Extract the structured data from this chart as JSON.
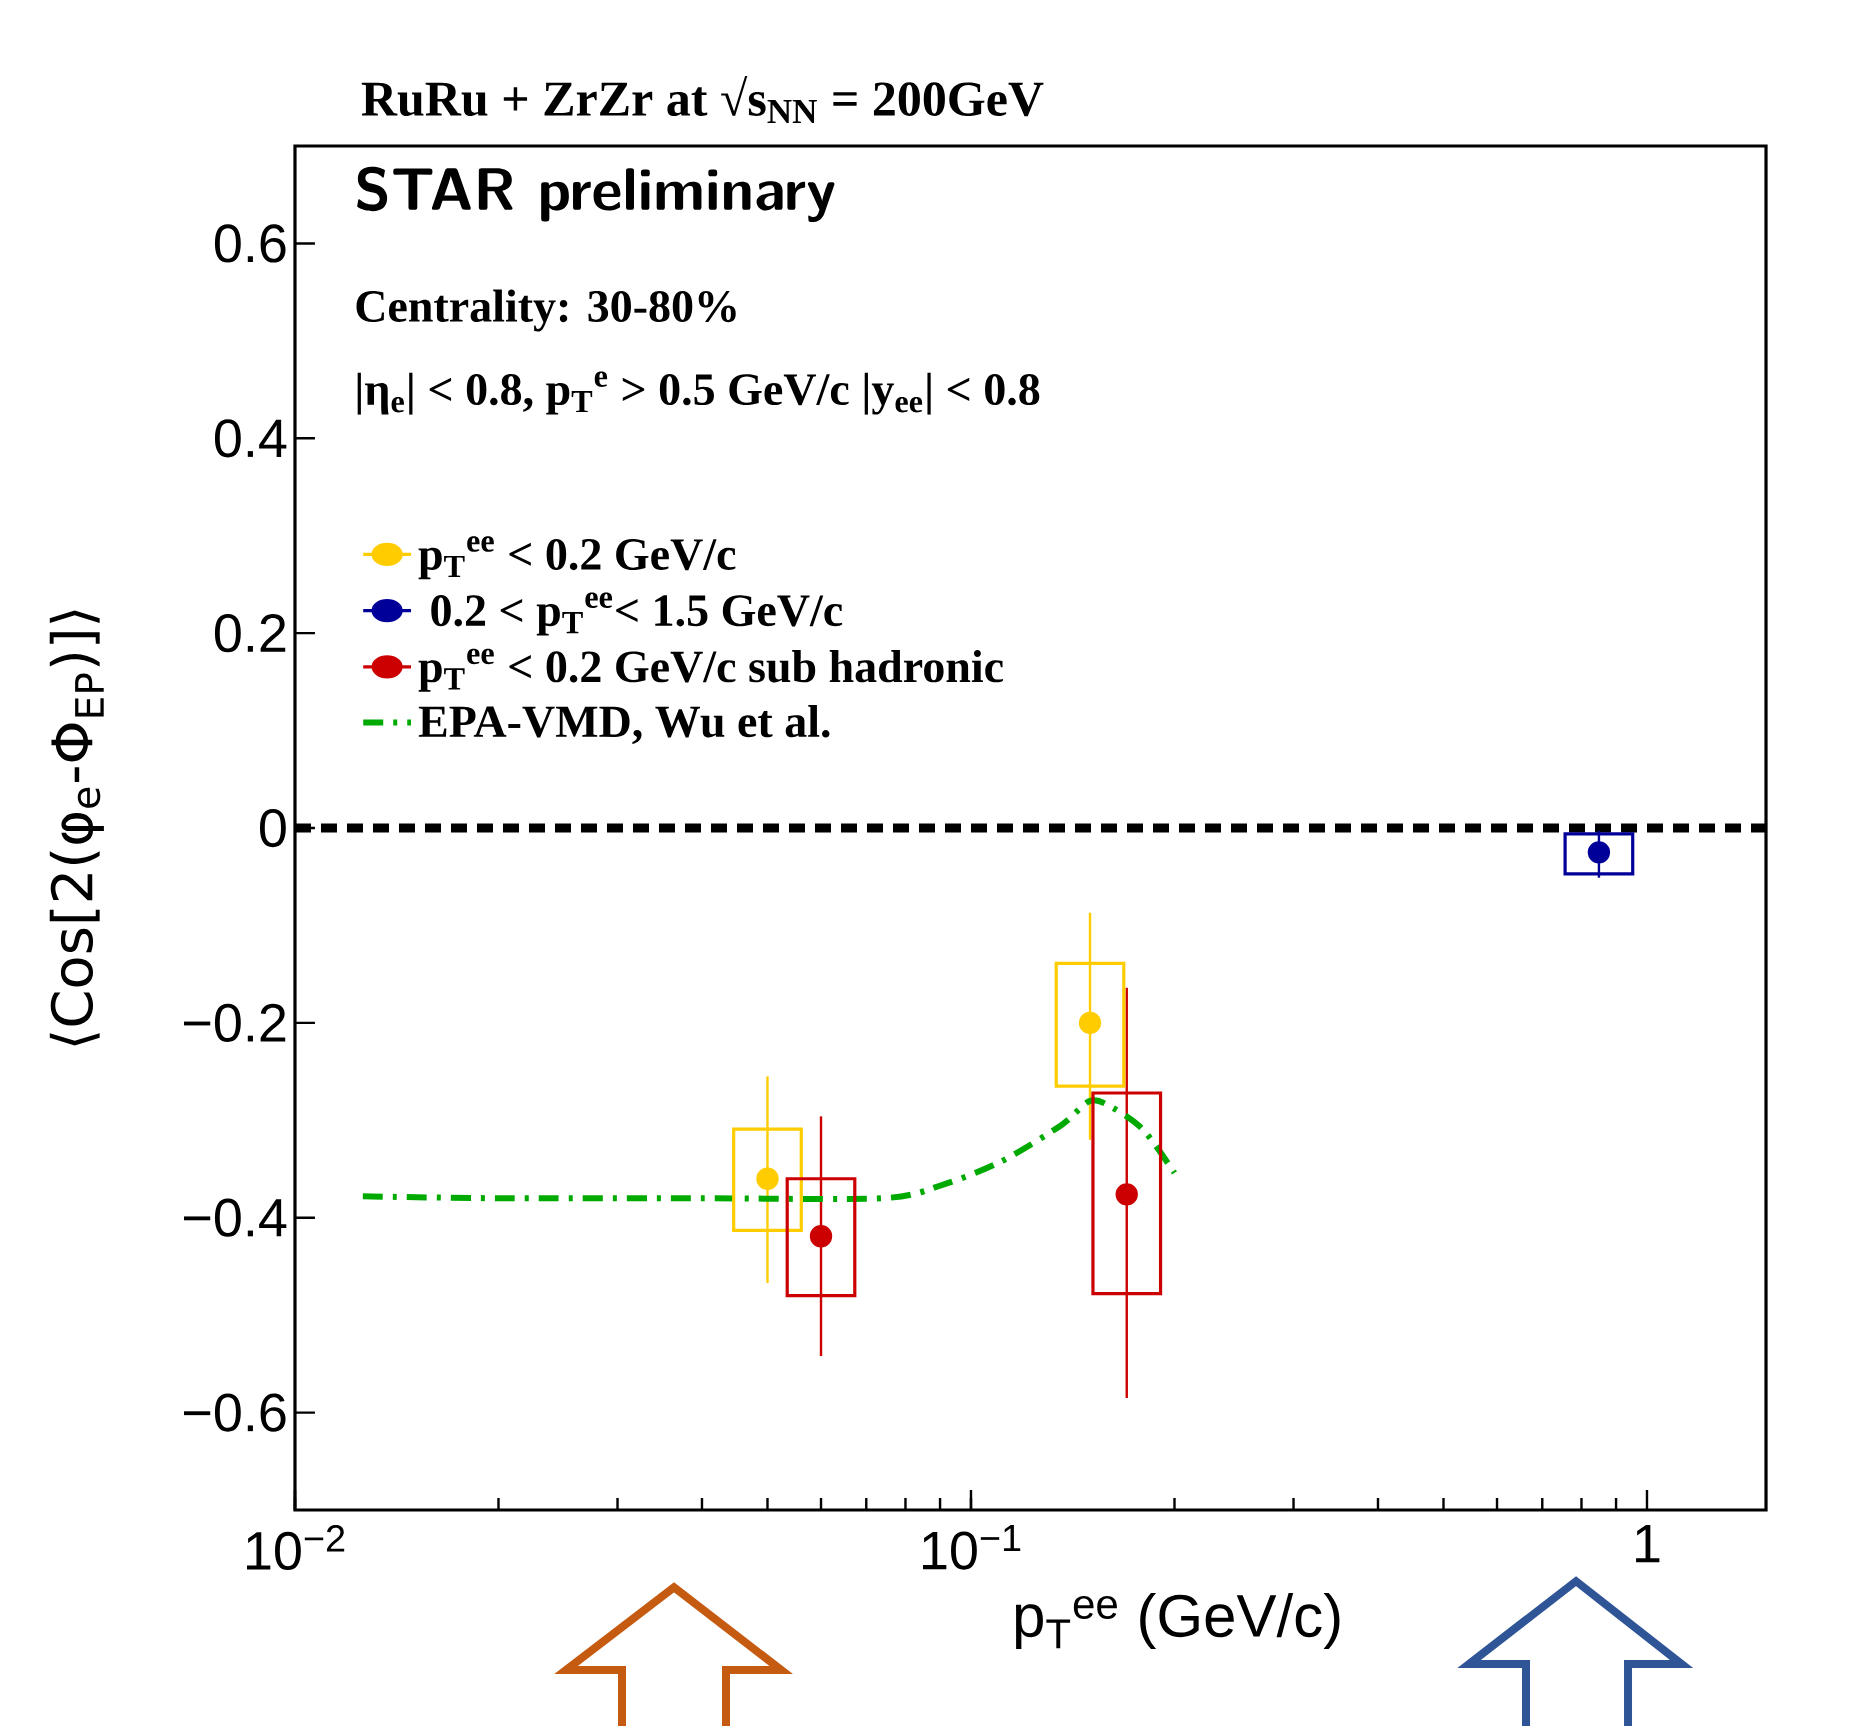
{
  "chart_data": {
    "type": "scatter",
    "title": "RuRu + ZrZr at √s$_{NN}$ = 200GeV",
    "annotations": [
      "**STAR preliminary**",
      "Centrality: 30-80%",
      "|η$_{e}$| < 0.8, p$_{T}$$^{e}$ > 0.5 GeV/c |y$_{ee}$| < 0.8"
    ],
    "xlabel": "p$_{T}$$^{ee}$ (GeV/c)",
    "ylabel": "⟨Cos[2(φ$_{e}$-Φ$_{EP}$)]⟩",
    "log": "x",
    "xlim": [
      0.01,
      1.5
    ],
    "ylim": [
      -0.7,
      0.7
    ],
    "xticks": [
      {
        "value": 0.01,
        "label": "10$^{−2}$"
      },
      {
        "value": 0.1,
        "label": "10$^{−1}$"
      },
      1
    ],
    "yticks": [
      {
        "value": -0.6,
        "label": "−0.6"
      },
      {
        "value": -0.4,
        "label": "−0.4"
      },
      {
        "value": -0.2,
        "label": "−0.2"
      },
      0,
      0.2,
      0.4,
      0.6
    ],
    "legend": "top left",
    "marker": "circle",
    "ref_lines": [
      {
        "axis": "y",
        "value": 0,
        "color": "#000000",
        "line_style": "dashed"
      }
    ],
    "series": [
      {
        "name": "p$_{T}$$^{ee}$ < 0.2 GeV/c",
        "color": "#ffcc00",
        "x": [
          0.05,
          0.15
        ],
        "values": [
          -0.36,
          -0.2
        ],
        "errors": [
          [
            -0.467,
            -0.255
          ],
          [
            -0.32,
            -0.087
          ]
        ]
      },
      {
        "name": " 0.2 < p$_{T}$$^{ee}$< 1.5 GeV/c",
        "color": "#000099",
        "x": [
          0.849
        ],
        "values": [
          -0.025
        ],
        "errors": [
          [
            -0.051,
            -0.003
          ]
        ]
      },
      {
        "name": "p$_{T}$$^{ee}$ < 0.2 GeV/c sub hadronic",
        "color": "#cc0000",
        "x": [
          0.06,
          0.17
        ],
        "values": [
          -0.419,
          -0.376
        ],
        "errors": [
          [
            -0.542,
            -0.296
          ],
          [
            -0.585,
            -0.164
          ]
        ]
      },
      {
        "name": "EPA-VMD, Wu et al.",
        "type": "line",
        "line_style": "dashdot",
        "marker": "none",
        "color": "#00aa00",
        "x": [
          0.0126,
          0.02,
          0.04,
          0.074,
          0.091,
          0.111,
          0.136,
          0.15,
          0.162,
          0.18,
          0.2
        ],
        "values": [
          -0.378,
          -0.38,
          -0.38,
          -0.38,
          -0.366,
          -0.342,
          -0.305,
          -0.28,
          -0.287,
          -0.31,
          -0.354
        ]
      },
      {
        "type": "bar",
        "color": "#ffcc00",
        "x": [
          0.05,
          0.15
        ],
        "base": [
          -0.413,
          -0.265
        ],
        "values": [
          0.104,
          0.126
        ]
      },
      {
        "type": "bar",
        "color": "#000099",
        "x": [
          0.849
        ],
        "base": [
          -0.047
        ],
        "values": [
          0.041
        ]
      },
      {
        "type": "bar",
        "color": "#cc0000",
        "x": [
          0.06,
          0.17
        ],
        "base": [
          -0.48,
          -0.478
        ],
        "values": [
          0.12,
          0.206
        ]
      }
    ]
  }
}
